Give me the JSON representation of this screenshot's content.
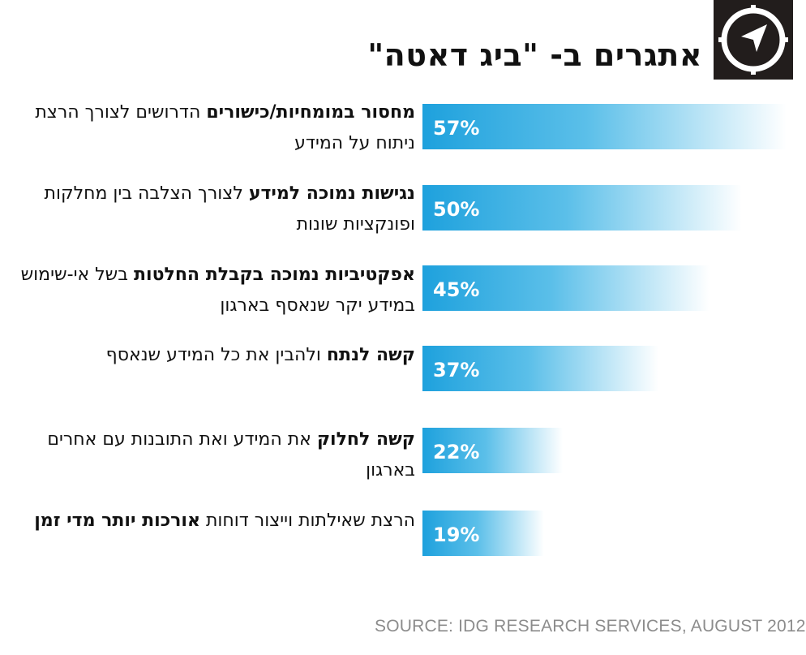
{
  "title": "אתגרים ב- \"ביג דאטה\"",
  "logo": {
    "icon": "compass-navigation-icon",
    "bg_color": "#221d1c"
  },
  "source": "SOURCE: IDG RESEARCH SERVICES, AUGUST 2012",
  "colors": {
    "bar_start": "#1ea1dd",
    "bar_end": "#ffffff",
    "text": "#111111"
  },
  "chart_data": {
    "type": "bar",
    "orientation": "horizontal",
    "title": "אתגרים ב- \"ביג דאטה\"",
    "unit": "%",
    "categories": [
      "מחסור במומחיות/כישורים הדרושים לצורך הרצת ניתוח על המידע",
      "נגישות נמוכה למידע לצורך הצלבה בין מחלקות ופונקציות שונות",
      "אפקטיביות נמוכה בקבלת החלטות בשל אי-שימוש במידע יקר שנאסף בארגון",
      "קשה לנתח ולהבין את כל המידע שנאסף",
      "קשה לחלוק את המידע ואת התובנות עם אחרים בארגון",
      "הרצת שאילתות וייצור דוחות אורכות יותר מדי זמן"
    ],
    "values": [
      57,
      50,
      45,
      37,
      22,
      19
    ],
    "value_labels": [
      "57%",
      "50%",
      "45%",
      "37%",
      "22%",
      "19%"
    ],
    "rows": [
      {
        "segments": [
          {
            "text": "מחסור במומחיות/כישורים",
            "bold": true
          },
          {
            "text": " הדרושים לצורך הרצת ניתוח על המידע",
            "bold": false
          }
        ]
      },
      {
        "segments": [
          {
            "text": "נגישות נמוכה למידע",
            "bold": true
          },
          {
            "text": " לצורך הצלבה בין מחלקות ופונקציות שונות",
            "bold": false
          }
        ]
      },
      {
        "segments": [
          {
            "text": "אפקטיביות נמוכה בקבלת החלטות",
            "bold": true
          },
          {
            "text": " בשל אי-שימוש במידע יקר שנאסף בארגון",
            "bold": false
          }
        ]
      },
      {
        "segments": [
          {
            "text": "קשה לנתח",
            "bold": true
          },
          {
            "text": " ולהבין את כל המידע שנאסף",
            "bold": false
          }
        ]
      },
      {
        "segments": [
          {
            "text": "קשה לחלוק",
            "bold": true
          },
          {
            "text": " את המידע ואת התובנות עם אחרים בארגון",
            "bold": false
          }
        ]
      },
      {
        "segments": [
          {
            "text": "הרצת שאילתות וייצור דוחות ",
            "bold": false
          },
          {
            "text": "אורכות יותר מדי זמן",
            "bold": true
          }
        ]
      }
    ],
    "xlim": [
      0,
      57
    ],
    "grid": false,
    "legend": "none"
  }
}
